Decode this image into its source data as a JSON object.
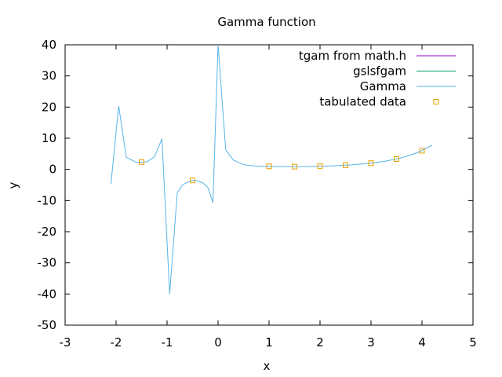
{
  "chart_data": {
    "type": "line",
    "title": "Gamma function",
    "xlabel": "x",
    "ylabel": "y",
    "xlim": [
      -3,
      5
    ],
    "ylim": [
      -50,
      40
    ],
    "xticks": [
      -3,
      -2,
      -1,
      0,
      1,
      2,
      3,
      4,
      5
    ],
    "yticks": [
      -50,
      -40,
      -30,
      -20,
      -10,
      0,
      10,
      20,
      30,
      40
    ],
    "grid": false,
    "legend_position": "top-right",
    "series": [
      {
        "name": "tgam from math.h",
        "color": "#9400d3",
        "style": "line",
        "x": [],
        "y": []
      },
      {
        "name": "gslsfgam",
        "color": "#009e73",
        "style": "line",
        "x": [],
        "y": []
      },
      {
        "name": "Gamma",
        "color": "#56b4e9",
        "style": "line",
        "x": [
          -2.1,
          -1.95,
          -1.8,
          -1.6,
          -1.4,
          -1.25,
          -1.1,
          -0.95,
          -0.8,
          -0.7,
          -0.6,
          -0.5,
          -0.4,
          -0.3,
          -0.2,
          -0.1,
          0.0,
          0.15,
          0.3,
          0.5,
          0.7,
          0.9,
          1.0,
          1.2,
          1.5,
          1.8,
          2.0,
          2.3,
          2.6,
          3.0,
          3.3,
          3.6,
          3.9,
          4.2
        ],
        "y": [
          -4.6,
          20.4,
          3.9,
          2.2,
          2.4,
          4.0,
          9.8,
          -40.0,
          -7.5,
          -5.0,
          -4.1,
          -3.5,
          -3.7,
          -4.3,
          -5.8,
          -10.7,
          40.0,
          6.2,
          3.0,
          1.5,
          1.1,
          0.95,
          1.0,
          0.9,
          0.89,
          0.93,
          1.0,
          1.17,
          1.43,
          2.0,
          2.68,
          3.72,
          5.3,
          7.76
        ]
      },
      {
        "name": "tabulated data",
        "color": "#e69f00",
        "style": "markers",
        "x": [
          -1.5,
          -0.5,
          1.0,
          1.5,
          2.0,
          2.5,
          3.0,
          3.5,
          4.0
        ],
        "y": [
          2.363,
          -3.545,
          1.0,
          0.886,
          1.0,
          1.329,
          2.0,
          3.323,
          6.0
        ]
      }
    ]
  }
}
